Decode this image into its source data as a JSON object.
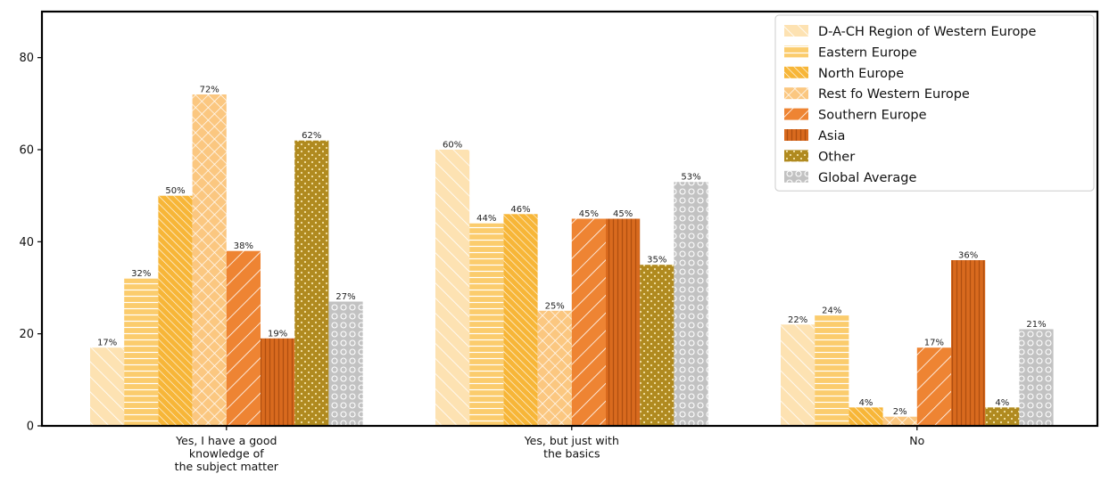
{
  "chart_data": {
    "type": "bar",
    "title": "",
    "xlabel": "",
    "ylabel": "",
    "ylim": [
      0,
      90
    ],
    "yticks": [
      0,
      20,
      40,
      60,
      80
    ],
    "grid": false,
    "legend_position": "top-right",
    "categories": [
      [
        "Yes, I have a good",
        "knowledge of",
        "the subject matter"
      ],
      [
        "Yes, but just with",
        "the basics"
      ],
      [
        "No"
      ]
    ],
    "series": [
      {
        "name": "D-A-CH Region of Western Europe",
        "color": "#fde2b2",
        "pattern": "diag-right-sparse",
        "values": [
          17,
          60,
          22
        ],
        "labels": [
          "17%",
          "60%",
          "22%"
        ]
      },
      {
        "name": "Eastern Europe",
        "color": "#fbcc6d",
        "pattern": "horizontal",
        "values": [
          32,
          44,
          24
        ],
        "labels": [
          "32%",
          "44%",
          "24%"
        ]
      },
      {
        "name": "North Europe",
        "color": "#f7b638",
        "pattern": "diag-right-dense",
        "values": [
          50,
          46,
          4
        ],
        "labels": [
          "50%",
          "46%",
          "4%"
        ]
      },
      {
        "name": "Rest fo Western Europe",
        "color": "#fbc780",
        "pattern": "crosshatch",
        "values": [
          72,
          25,
          2
        ],
        "labels": [
          "72%",
          "25%",
          "2%"
        ]
      },
      {
        "name": "Southern Europe",
        "color": "#ee8433",
        "pattern": "diag-left",
        "values": [
          38,
          45,
          17
        ],
        "labels": [
          "38%",
          "45%",
          "17%"
        ]
      },
      {
        "name": "Asia",
        "color": "#d96a1e",
        "pattern": "vertical",
        "values": [
          19,
          45,
          36
        ],
        "labels": [
          "19%",
          "45%",
          "36%"
        ]
      },
      {
        "name": "Other",
        "color": "#b08a1f",
        "pattern": "dots",
        "values": [
          62,
          35,
          4
        ],
        "labels": [
          "62%",
          "35%",
          "4%"
        ]
      },
      {
        "name": "Global Average",
        "color": "#c2c2c2",
        "pattern": "circles",
        "values": [
          27,
          53,
          21
        ],
        "labels": [
          "27%",
          "53%",
          "21%"
        ]
      }
    ]
  }
}
